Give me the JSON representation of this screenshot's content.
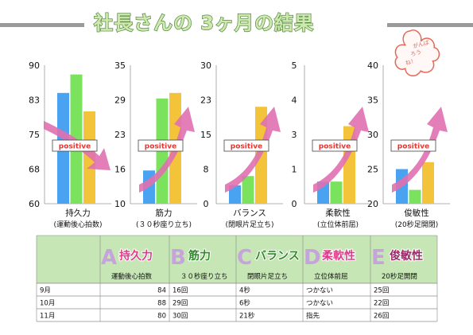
{
  "title": "社長さんの 3ヶ月の結果",
  "stamp": {
    "lines": [
      "がんば",
      "ろう",
      "ね！"
    ]
  },
  "badge_text": "positive",
  "colors": {
    "m9": "#4aa3f0",
    "m10": "#7be25e",
    "m11": "#f3c33a",
    "arrow": "#e070b0",
    "table_header": "#c6e6b5",
    "title_fill": "#cfe8b0",
    "title_stroke": "#4f8a3a"
  },
  "chart_data": [
    {
      "type": "bar",
      "name": "持久力",
      "sub": "(運動後心拍数)",
      "categories": [
        "9月",
        "10月",
        "11月"
      ],
      "values": [
        84,
        88,
        80
      ],
      "ylim": [
        60,
        90
      ],
      "ticks": [
        "90",
        "83",
        "75",
        "68",
        "60"
      ]
    },
    {
      "type": "bar",
      "name": "筋力",
      "sub": "(３０秒座り立ち)",
      "categories": [
        "9月",
        "10月",
        "11月"
      ],
      "values": [
        16,
        29,
        30
      ],
      "ylim": [
        10,
        35
      ],
      "ticks": [
        "35",
        "29",
        "23",
        "16",
        "10"
      ]
    },
    {
      "type": "bar",
      "name": "バランス",
      "sub": "(閉眼片足立ち)",
      "categories": [
        "9月",
        "10月",
        "11月"
      ],
      "values": [
        4,
        6,
        21
      ],
      "ylim": [
        0,
        30
      ],
      "ticks": [
        "30",
        "23",
        "15",
        "8",
        "0"
      ]
    },
    {
      "type": "bar",
      "name": "柔軟性",
      "sub": "(立位体前屈)",
      "categories": [
        "9月",
        "10月",
        "11月"
      ],
      "values": [
        0.8,
        0.8,
        2.8
      ],
      "ylim": [
        0,
        5
      ],
      "ticks": [
        "5",
        "4",
        "3",
        "1",
        "0"
      ]
    },
    {
      "type": "bar",
      "name": "俊敏性",
      "sub": "(20秒足開閉)",
      "categories": [
        "9月",
        "10月",
        "11月"
      ],
      "values": [
        25,
        22,
        26
      ],
      "ylim": [
        20,
        40
      ],
      "ticks": [
        "40",
        "35",
        "30",
        "25",
        "20"
      ]
    }
  ],
  "table": {
    "headers": [
      {
        "letter": "A",
        "name": "持久力",
        "sub": "運動後心拍数",
        "color": "#e03a8a",
        "letter_color": "#c79be0"
      },
      {
        "letter": "B",
        "name": "筋力",
        "sub": "３０秒座り立ち",
        "color": "#2f8a2a",
        "letter_color": "#c79be0"
      },
      {
        "letter": "C",
        "name": "バランス",
        "sub": "閉眼片足立ち",
        "color": "#2f8a2a",
        "letter_color": "#c79be0"
      },
      {
        "letter": "D",
        "name": "柔軟性",
        "sub": "立位体前屈",
        "color": "#e03a8a",
        "letter_color": "#c79be0"
      },
      {
        "letter": "E",
        "name": "俊敏性",
        "sub": "20秒足開閉",
        "color": "#a0286a",
        "letter_color": "#c79be0"
      }
    ],
    "rows": [
      {
        "month": "9月",
        "cells": [
          "84",
          "16回",
          "4秒",
          "つかない",
          "25回"
        ]
      },
      {
        "month": "10月",
        "cells": [
          "88",
          "29回",
          "6秒",
          "つかない",
          "22回"
        ]
      },
      {
        "month": "11月",
        "cells": [
          "80",
          "30回",
          "21秒",
          "指先",
          "26回"
        ]
      }
    ]
  }
}
